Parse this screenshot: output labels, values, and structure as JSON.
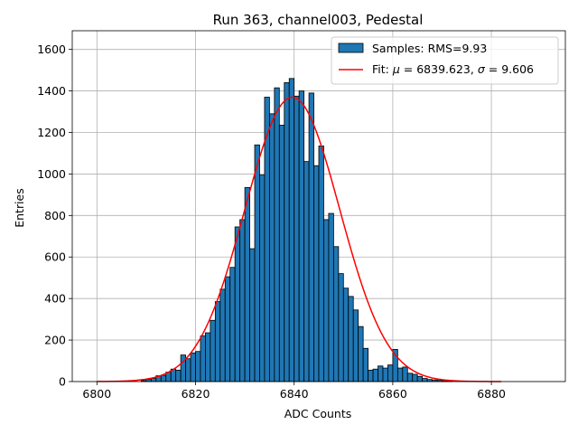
{
  "chart_data": {
    "type": "bar",
    "title": "Run 363, channel003, Pedestal",
    "xlabel": "ADC Counts",
    "ylabel": "Entries",
    "xlim": [
      6795,
      6895
    ],
    "ylim": [
      0,
      1690
    ],
    "xticks": [
      6800,
      6820,
      6840,
      6860,
      6880
    ],
    "yticks": [
      0,
      200,
      400,
      600,
      800,
      1000,
      1200,
      1400,
      1600
    ],
    "grid": true,
    "legend_position": "top-right",
    "bar_color": "#1f77b4",
    "fit_color": "#ff0000",
    "histogram": {
      "name": "Samples: RMS=9.93",
      "bin_width": 1,
      "bin_start": 6809,
      "counts": [
        5,
        10,
        15,
        28,
        30,
        45,
        60,
        55,
        128,
        110,
        138,
        145,
        220,
        235,
        295,
        385,
        445,
        505,
        550,
        745,
        780,
        935,
        640,
        1140,
        995,
        1370,
        1290,
        1415,
        1235,
        1440,
        1460,
        1375,
        1400,
        1060,
        1390,
        1040,
        1135,
        780,
        810,
        650,
        520,
        450,
        410,
        345,
        265,
        160,
        55,
        60,
        75,
        65,
        80,
        155,
        65,
        70,
        40,
        35,
        25,
        15,
        10,
        8,
        6,
        5,
        5
      ]
    },
    "fit": {
      "name": "Fit: μ = 6839.623, σ = 9.606",
      "label_prefix": "Fit: ",
      "mu_symbol": "μ",
      "sigma_symbol": "σ",
      "mu_value": "= 6839.623,",
      "sigma_value": "= 9.606",
      "mu": 6839.623,
      "sigma": 9.606,
      "amplitude": 1370,
      "x_range": [
        6800,
        6882
      ]
    }
  }
}
